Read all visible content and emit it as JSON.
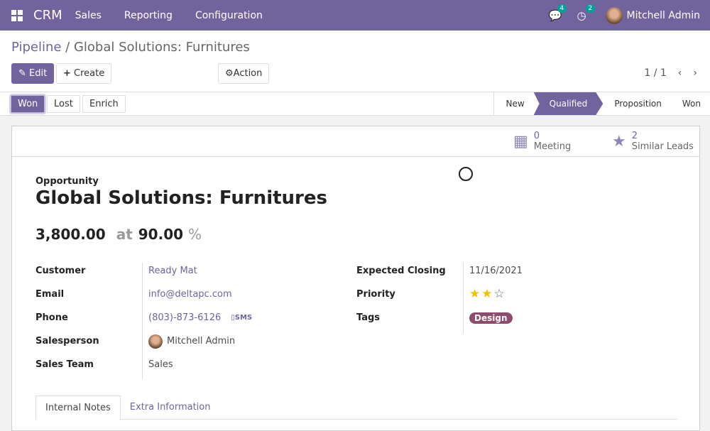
{
  "navbar": {
    "app": "CRM",
    "menus": [
      "Sales",
      "Reporting",
      "Configuration"
    ],
    "messages_count": "4",
    "activities_count": "2",
    "user": "Mitchell Admin",
    "accent": "#71639e"
  },
  "breadcrumb": {
    "parent": "Pipeline",
    "separator": " / ",
    "current": "Global Solutions: Furnitures"
  },
  "toolbar": {
    "edit": "Edit",
    "create": "Create",
    "action": "Action",
    "pager": "1 / 1"
  },
  "statusbar": {
    "buttons": [
      "Won",
      "Lost",
      "Enrich"
    ],
    "stages": [
      "New",
      "Qualified",
      "Proposition",
      "Won"
    ],
    "active_stage": "Qualified"
  },
  "smart_buttons": {
    "meeting_count": "0",
    "meeting_label": "Meeting",
    "similar_count": "2",
    "similar_label": "Similar Leads"
  },
  "record": {
    "kind": "Opportunity",
    "name": "Global Solutions: Furnitures",
    "revenue": "3,800.00",
    "at": "at",
    "probability": "90.00",
    "percent": "%"
  },
  "fields_left": [
    {
      "label": "Customer",
      "value": "Ready Mat"
    },
    {
      "label": "Email",
      "value": "info@deltapc.com"
    },
    {
      "label": "Phone",
      "value": "(803)-873-6126",
      "extra": "SMS"
    },
    {
      "label": "Salesperson",
      "value": "Mitchell Admin"
    },
    {
      "label": "Sales Team",
      "value": "Sales"
    }
  ],
  "fields_right": [
    {
      "label": "Expected Closing",
      "value": "11/16/2021"
    },
    {
      "label": "Priority",
      "stars_filled": 2,
      "stars_total": 3
    },
    {
      "label": "Tags",
      "value": "Design",
      "color": "#8d4b6e"
    }
  ],
  "tabs": [
    "Internal Notes",
    "Extra Information"
  ]
}
